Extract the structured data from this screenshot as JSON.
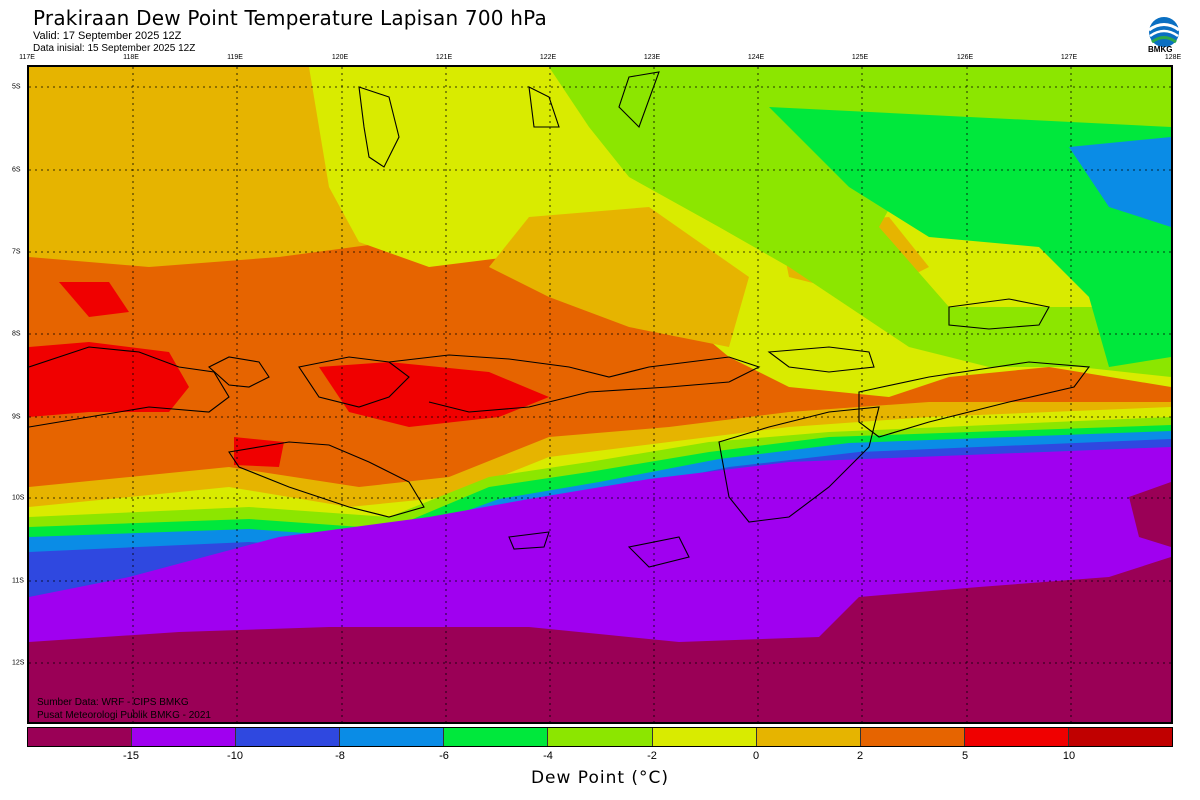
{
  "header": {
    "title": "Prakiraan Dew Point Temperature Lapisan 700 hPa",
    "valid": "Valid: 17 September 2025 12Z",
    "init": "Data inisial: 15 September 2025 12Z",
    "logo_text": "BMKG"
  },
  "axes": {
    "lon_labels": [
      "117E",
      "118E",
      "119E",
      "120E",
      "121E",
      "122E",
      "123E",
      "124E",
      "125E",
      "126E",
      "127E",
      "128E"
    ],
    "lat_labels": [
      "5S",
      "6S",
      "7S",
      "8S",
      "9S",
      "10S",
      "11S",
      "12S"
    ]
  },
  "credits": {
    "line1": "Sumber Data: WRF - CIPS BMKG",
    "line2": "Pusat Meteorologi Publik BMKG - 2021"
  },
  "legend": {
    "colors": [
      "#9a0056",
      "#a000f0",
      "#2f48e0",
      "#0a8ce6",
      "#00e83c",
      "#8ce600",
      "#d9eb00",
      "#e6b400",
      "#e66400",
      "#f00000",
      "#c00000"
    ],
    "ticks": [
      "-15",
      "-10",
      "-8",
      "-6",
      "-4",
      "-2",
      "0",
      "2",
      "5",
      "10"
    ],
    "unit_label": "Dew Point (°C)"
  },
  "colors": {
    "land_outline": "#000000",
    "grid": "#000000"
  }
}
